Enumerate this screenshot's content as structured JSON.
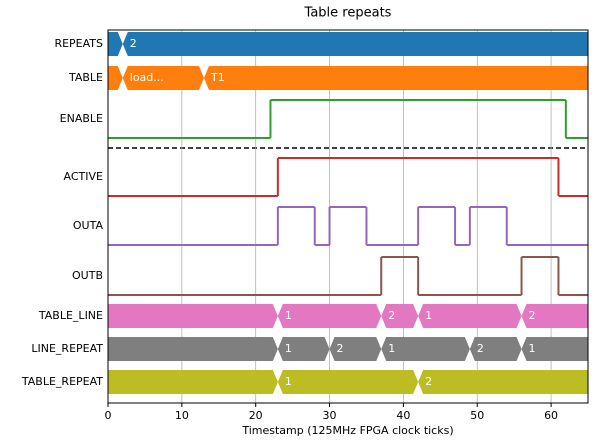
{
  "chart_data": {
    "type": "timing",
    "title": "Table repeats",
    "x_label": "Timestamp (125MHz FPGA clock ticks)",
    "xlim": [
      0,
      65
    ],
    "xticks": [
      0,
      10,
      20,
      30,
      40,
      50,
      60
    ],
    "grid": true,
    "series": [
      {
        "name": "REPEATS",
        "color": "#1f77b4",
        "kind": "bus",
        "x": [
          0,
          2
        ],
        "labels": [
          null,
          "2"
        ]
      },
      {
        "name": "TABLE",
        "color": "#ff7f0e",
        "kind": "bus",
        "x": [
          0,
          2,
          13
        ],
        "labels": [
          null,
          "load...",
          "T1"
        ]
      },
      {
        "name": "ENABLE",
        "color": "#2ca02c",
        "kind": "bit",
        "x": [
          0,
          22,
          62
        ],
        "values": [
          0,
          1,
          0
        ]
      },
      {
        "name": "ACTIVE",
        "color": "#d62728",
        "kind": "bit",
        "x": [
          0,
          23,
          61
        ],
        "values": [
          0,
          1,
          0
        ]
      },
      {
        "name": "OUTA",
        "color": "#9467bd",
        "kind": "bit",
        "x": [
          0,
          23,
          28,
          30,
          35,
          42,
          47,
          49,
          54
        ],
        "values": [
          0,
          1,
          0,
          1,
          0,
          1,
          0,
          1,
          0
        ]
      },
      {
        "name": "OUTB",
        "color": "#8c564b",
        "kind": "bit",
        "x": [
          0,
          37,
          42,
          56,
          61
        ],
        "values": [
          0,
          1,
          0,
          1,
          0
        ]
      },
      {
        "name": "TABLE_LINE",
        "color": "#e377c2",
        "kind": "bus",
        "x": [
          0,
          23,
          37,
          42,
          56
        ],
        "labels": [
          null,
          "1",
          "2",
          "1",
          "2"
        ]
      },
      {
        "name": "LINE_REPEAT",
        "color": "#7f7f7f",
        "kind": "bus",
        "x": [
          0,
          23,
          30,
          37,
          49,
          56
        ],
        "labels": [
          null,
          "1",
          "2",
          "1",
          "2",
          "1"
        ]
      },
      {
        "name": "TABLE_REPEAT",
        "color": "#bcbd22",
        "kind": "bus",
        "x": [
          0,
          23,
          42
        ],
        "labels": [
          null,
          "1",
          "2"
        ]
      }
    ]
  }
}
